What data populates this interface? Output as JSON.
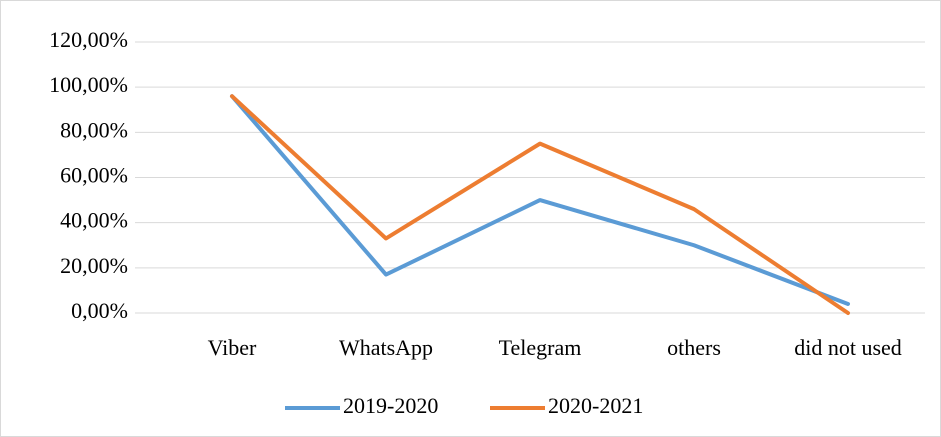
{
  "chart_data": {
    "type": "line",
    "categories": [
      "Viber",
      "WhatsApp",
      "Telegram",
      "others",
      "did not used"
    ],
    "series": [
      {
        "name": "2019-2020",
        "color": "#5b9bd5",
        "values": [
          96,
          17,
          50,
          30,
          4
        ]
      },
      {
        "name": "2020-2021",
        "color": "#ed7d31",
        "values": [
          96,
          33,
          75,
          46,
          0
        ]
      }
    ],
    "ylim": [
      0,
      120
    ],
    "yticks": [
      {
        "value": 0,
        "label": "0,00%"
      },
      {
        "value": 20,
        "label": "20,00%"
      },
      {
        "value": 40,
        "label": "40,00%"
      },
      {
        "value": 60,
        "label": "60,00%"
      },
      {
        "value": 80,
        "label": "80,00%"
      },
      {
        "value": 100,
        "label": "100,00%"
      },
      {
        "value": 120,
        "label": "120,00%"
      }
    ],
    "grid": true,
    "legend": "bottom"
  }
}
